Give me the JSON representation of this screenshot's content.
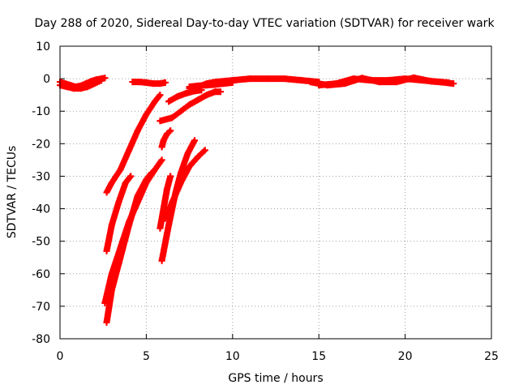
{
  "chart_data": {
    "type": "scatter",
    "title": "Day 288 of 2020, Sidereal Day-to-day VTEC variation (SDTVAR) for receiver wark",
    "xlabel": "GPS time / hours",
    "ylabel": "SDTVAR / TECUs",
    "xlim": [
      0,
      25
    ],
    "ylim": [
      -80,
      10
    ],
    "xticks": [
      0,
      5,
      10,
      15,
      20,
      25
    ],
    "yticks": [
      10,
      0,
      -10,
      -20,
      -30,
      -40,
      -50,
      -60,
      -70,
      -80
    ],
    "grid": true,
    "marker": "plus",
    "color": "#ff0000",
    "segments": [
      {
        "x": [
          0.0,
          0.3,
          0.6,
          0.9,
          1.2,
          1.5,
          1.8,
          2.1,
          2.4,
          2.6
        ],
        "y": [
          -1.0,
          -1.5,
          -2.0,
          -2.5,
          -2.2,
          -1.5,
          -0.8,
          -0.3,
          0.0,
          0.2
        ]
      },
      {
        "x": [
          0.0,
          0.4,
          0.8,
          1.2,
          1.6,
          2.0,
          2.4
        ],
        "y": [
          -2.0,
          -2.5,
          -3.0,
          -3.0,
          -2.5,
          -1.5,
          -0.5
        ]
      },
      {
        "x": [
          4.2,
          4.6,
          5.0,
          5.4,
          5.8,
          6.1
        ],
        "y": [
          -1.0,
          -1.0,
          -1.2,
          -1.5,
          -1.5,
          -1.2
        ]
      },
      {
        "x": [
          2.7,
          3.0,
          3.5,
          4.0,
          4.5,
          5.0,
          5.5,
          5.8
        ],
        "y": [
          -35.0,
          -32.0,
          -28.0,
          -22.0,
          -16.0,
          -11.0,
          -7.0,
          -5.0
        ]
      },
      {
        "x": [
          2.7,
          3.0,
          3.4,
          3.8,
          4.1
        ],
        "y": [
          -53.0,
          -45.0,
          -38.0,
          -32.0,
          -30.0
        ]
      },
      {
        "x": [
          2.7,
          3.0,
          3.5,
          4.0,
          4.5,
          5.0,
          5.3
        ],
        "y": [
          -75.0,
          -65.0,
          -55.0,
          -45.0,
          -36.0,
          -31.0,
          -29.0
        ]
      },
      {
        "x": [
          2.6,
          3.0,
          3.5,
          4.0,
          4.5,
          5.0,
          5.5,
          5.9
        ],
        "y": [
          -69.0,
          -60.0,
          -52.0,
          -44.0,
          -38.0,
          -32.0,
          -28.0,
          -25.0
        ]
      },
      {
        "x": [
          5.8,
          6.0,
          6.2,
          6.4
        ],
        "y": [
          -46.0,
          -40.0,
          -34.0,
          -30.0
        ]
      },
      {
        "x": [
          5.9,
          6.0,
          6.2,
          6.4
        ],
        "y": [
          -21.0,
          -19.0,
          -17.0,
          -16.0
        ]
      },
      {
        "x": [
          5.9,
          6.3,
          6.7,
          7.0,
          7.4,
          7.8
        ],
        "y": [
          -56.0,
          -45.0,
          -35.0,
          -29.0,
          -23.0,
          -19.0
        ]
      },
      {
        "x": [
          6.1,
          6.5,
          7.0,
          7.5,
          8.0,
          8.4
        ],
        "y": [
          -43.0,
          -38.0,
          -32.0,
          -27.0,
          -24.0,
          -22.0
        ]
      },
      {
        "x": [
          5.8,
          6.5,
          7.0,
          7.5,
          8.0,
          8.5,
          9.0,
          9.3
        ],
        "y": [
          -13.0,
          -12.0,
          -10.0,
          -8.0,
          -6.5,
          -5.0,
          -4.0,
          -4.0
        ]
      },
      {
        "x": [
          6.3,
          6.8,
          7.3,
          7.8,
          8.2
        ],
        "y": [
          -7.0,
          -5.5,
          -4.5,
          -3.8,
          -3.5
        ]
      },
      {
        "x": [
          7.5,
          8.0,
          8.5,
          9.0,
          9.5,
          10.0
        ],
        "y": [
          -2.5,
          -2.2,
          -2.0,
          -1.8,
          -1.5,
          -1.2
        ]
      },
      {
        "x": [
          7.5,
          8.0,
          8.5,
          9.0,
          10.0,
          11.0,
          12.0,
          13.0,
          14.0,
          15.0
        ],
        "y": [
          -3.0,
          -2.5,
          -1.5,
          -1.0,
          -0.5,
          0.0,
          0.0,
          0.0,
          -0.5,
          -1.0
        ]
      },
      {
        "x": [
          15.0,
          16.0,
          17.0,
          18.0,
          19.0,
          20.0,
          21.0,
          22.0,
          22.8
        ],
        "y": [
          -2.0,
          -1.5,
          0.0,
          -0.5,
          -0.5,
          0.0,
          -0.5,
          -1.0,
          -1.5
        ]
      },
      {
        "x": [
          14.5,
          15.5,
          16.5,
          17.5,
          18.5,
          19.5,
          20.5,
          21.5,
          22.5
        ],
        "y": [
          -1.0,
          -2.0,
          -1.5,
          0.2,
          -1.0,
          -1.0,
          0.3,
          -0.8,
          -1.2
        ]
      }
    ]
  }
}
